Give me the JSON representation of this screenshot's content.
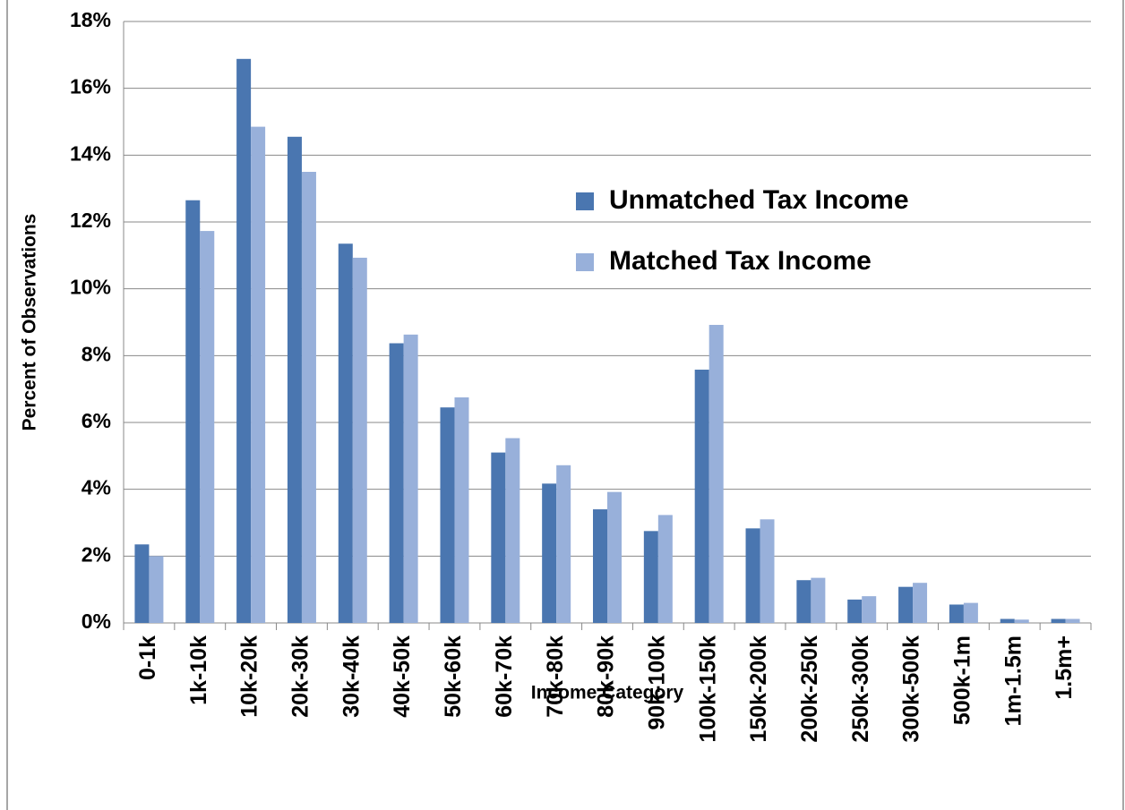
{
  "chart_data": {
    "type": "bar",
    "x_label": "Income Category",
    "y_label": "Percent of Observations",
    "categories": [
      "0-1k",
      "1k-10k",
      "10k-20k",
      "20k-30k",
      "30k-40k",
      "40k-50k",
      "50k-60k",
      "60k-70k",
      "70k-80k",
      "80k-90k",
      "90k-100k",
      "100k-150k",
      "150k-200k",
      "200k-250k",
      "250k-300k",
      "300k-500k",
      "500k-1m",
      "1m-1.5m",
      "1.5m+"
    ],
    "series": [
      {
        "name": "Unmatched Tax Income",
        "color": "#4a76b0",
        "values": [
          2.35,
          12.65,
          16.88,
          14.55,
          11.35,
          8.37,
          6.45,
          5.1,
          4.17,
          3.4,
          2.75,
          7.58,
          2.83,
          1.28,
          0.7,
          1.08,
          0.55,
          0.12,
          0.12
        ]
      },
      {
        "name": "Matched Tax Income",
        "color": "#98b0da",
        "values": [
          2.0,
          11.73,
          14.85,
          13.5,
          10.93,
          8.63,
          6.75,
          5.53,
          4.72,
          3.92,
          3.23,
          8.92,
          3.1,
          1.35,
          0.8,
          1.2,
          0.6,
          0.1,
          0.12
        ]
      }
    ],
    "ylim": [
      0,
      18
    ],
    "yticks": [
      {
        "value": 0,
        "label": "0%"
      },
      {
        "value": 2,
        "label": "2%"
      },
      {
        "value": 4,
        "label": "4%"
      },
      {
        "value": 6,
        "label": "6%"
      },
      {
        "value": 8,
        "label": "8%"
      },
      {
        "value": 10,
        "label": "10%"
      },
      {
        "value": 12,
        "label": "12%"
      },
      {
        "value": 14,
        "label": "14%"
      },
      {
        "value": 16,
        "label": "16%"
      },
      {
        "value": 18,
        "label": "18%"
      }
    ],
    "grid": true
  }
}
